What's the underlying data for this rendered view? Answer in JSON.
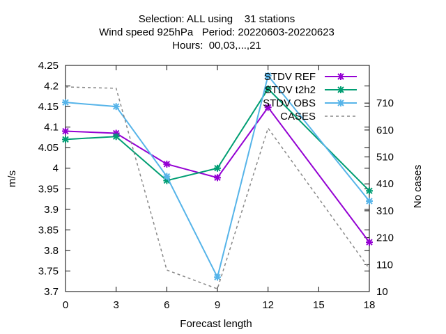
{
  "chart_data": {
    "type": "line",
    "title_lines": [
      "Selection: ALL using    31 stations",
      "Wind speed 925hPa   Period: 20220603-20220623",
      "Hours:  00,03,...,21"
    ],
    "xlabel": "Forecast length",
    "ylabel": "m/s",
    "y2label": "No cases",
    "x": [
      0,
      3,
      6,
      9,
      12,
      18
    ],
    "xlim": [
      0,
      18
    ],
    "xticks": [
      0,
      3,
      6,
      9,
      12,
      15,
      18
    ],
    "ylim": [
      3.7,
      4.25
    ],
    "yticks": [
      "3.7",
      "3.75",
      "3.8",
      "3.85",
      "3.9",
      "3.95",
      "4",
      "4.05",
      "4.1",
      "4.15",
      "4.2",
      "4.25"
    ],
    "y2lim": [
      10,
      850
    ],
    "y2ticks": [
      10,
      110,
      210,
      310,
      410,
      510,
      610,
      710
    ],
    "grid": false,
    "legend_position": "top-right",
    "series": [
      {
        "name": "STDV REF",
        "axis": "y",
        "color": "#9400d3",
        "marker": "x-star",
        "values": [
          4.09,
          4.085,
          4.01,
          3.977,
          4.148,
          3.82
        ]
      },
      {
        "name": "STDV t2h2",
        "axis": "y",
        "color": "#009e73",
        "marker": "x-star",
        "values": [
          4.07,
          4.077,
          3.97,
          4.0,
          4.193,
          3.945
        ]
      },
      {
        "name": "STDV OBS",
        "axis": "y",
        "color": "#56b4e9",
        "marker": "x-star",
        "values": [
          4.16,
          4.15,
          3.98,
          3.735,
          4.225,
          3.92
        ]
      },
      {
        "name": "CASES",
        "axis": "y2",
        "color": "#888888",
        "marker": "none",
        "dashed": true,
        "values": [
          770,
          765,
          90,
          20,
          617,
          95
        ]
      }
    ]
  }
}
